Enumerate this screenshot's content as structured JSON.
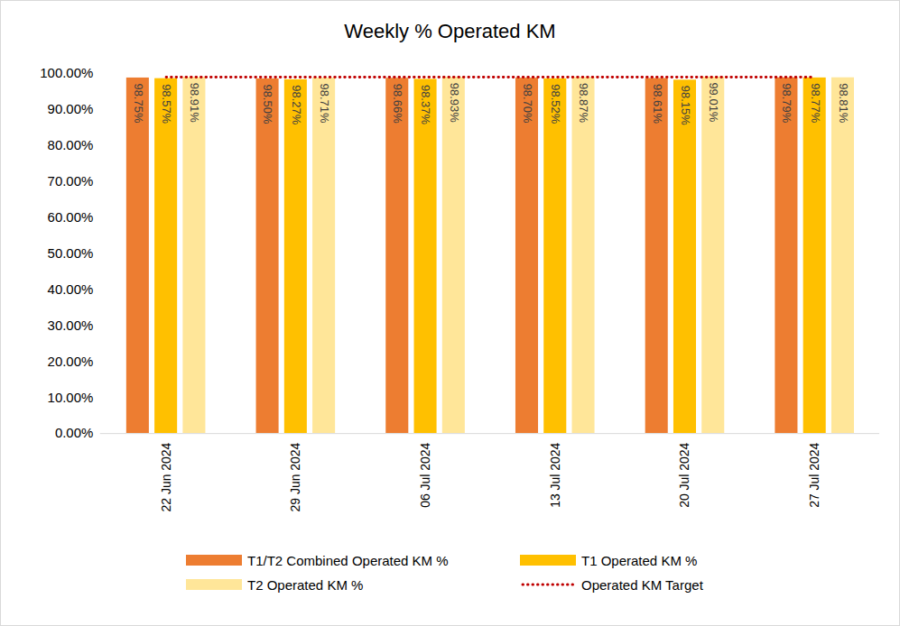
{
  "chart_data": {
    "type": "bar",
    "title": "Weekly % Operated KM",
    "categories": [
      "22 Jun 2024",
      "29 Jun 2024",
      "06 Jul 2024",
      "13 Jul 2024",
      "20 Jul 2024",
      "27 Jul 2024"
    ],
    "series": [
      {
        "name": "T1/T2 Combined Operated KM %",
        "color": "#ED7D31",
        "values": [
          98.75,
          98.5,
          98.66,
          98.7,
          98.61,
          98.79
        ],
        "value_labels": [
          "98.75%",
          "98.50%",
          "98.66%",
          "98.70%",
          "98.61%",
          "98.79%"
        ]
      },
      {
        "name": "T1 Operated KM %",
        "color": "#FFC000",
        "values": [
          98.57,
          98.27,
          98.37,
          98.52,
          98.15,
          98.77
        ],
        "value_labels": [
          "98.57%",
          "98.27%",
          "98.37%",
          "98.52%",
          "98.15%",
          "98.77%"
        ]
      },
      {
        "name": "T2 Operated KM %",
        "color": "#FFE699",
        "values": [
          98.91,
          98.71,
          98.93,
          98.87,
          99.01,
          98.81
        ],
        "value_labels": [
          "98.91%",
          "98.71%",
          "98.93%",
          "98.87%",
          "99.01%",
          "98.81%"
        ]
      },
      {
        "name": "Operated KM Target",
        "type": "line",
        "color": "#C00000",
        "line_style": "dotted",
        "values": [
          99,
          99,
          99,
          99,
          99,
          99
        ]
      }
    ],
    "ylim": [
      0,
      100
    ],
    "yticks": [
      {
        "value": 0,
        "label": "0.00%"
      },
      {
        "value": 10,
        "label": "10.00%"
      },
      {
        "value": 20,
        "label": "20.00%"
      },
      {
        "value": 30,
        "label": "30.00%"
      },
      {
        "value": 40,
        "label": "40.00%"
      },
      {
        "value": 50,
        "label": "50.00%"
      },
      {
        "value": 60,
        "label": "60.00%"
      },
      {
        "value": 70,
        "label": "70.00%"
      },
      {
        "value": 80,
        "label": "80.00%"
      },
      {
        "value": 90,
        "label": "90.00%"
      },
      {
        "value": 100,
        "label": "100.00%"
      }
    ],
    "grid": false,
    "legend": "bottom",
    "data_labels": true
  }
}
